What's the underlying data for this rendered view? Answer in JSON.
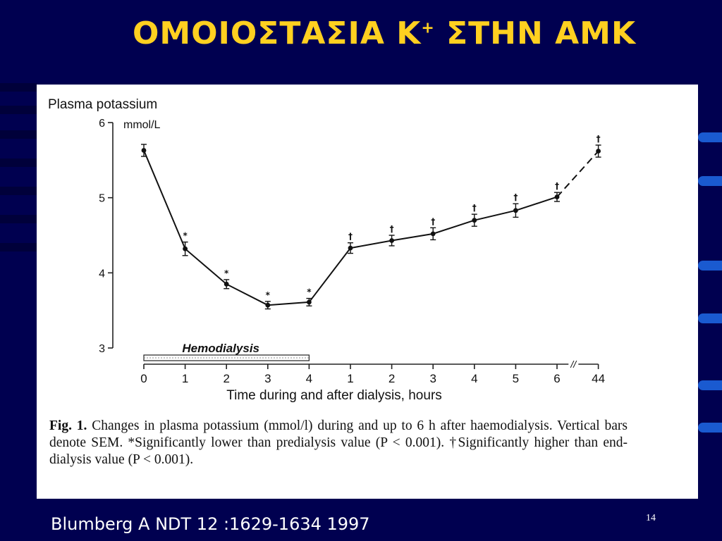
{
  "slide": {
    "title": "ΟΜΟΙΟΣΤΑΣΙΑ Κ",
    "title_superscript": "+",
    "title_suffix": " ΣΤΗΝ ΑΜΚ",
    "footer": "Blumberg A NDT 12 :1629-1634 1997",
    "page_number": "14",
    "title_color": "#ffd020",
    "background_color": "#000050"
  },
  "chart_data": {
    "type": "line",
    "title": "Plasma potassium",
    "ylabel_unit": "mmol/L",
    "xlabel": "Time during and after dialysis, hours",
    "ylim": [
      3,
      6
    ],
    "yticks": [
      3,
      4,
      5,
      6
    ],
    "band_label": "Hemodialysis",
    "axis_break": "//",
    "categories": [
      "0",
      "1",
      "2",
      "3",
      "4",
      "1",
      "2",
      "3",
      "4",
      "5",
      "6",
      "44"
    ],
    "series": [
      {
        "values": [
          5.63,
          4.32,
          3.85,
          3.57,
          3.61,
          4.33,
          4.43,
          4.52,
          4.7,
          4.83,
          5.01,
          5.62
        ],
        "sem": [
          0.08,
          0.09,
          0.06,
          0.05,
          0.05,
          0.07,
          0.07,
          0.08,
          0.08,
          0.09,
          0.06,
          0.08
        ],
        "markers": [
          "",
          "*",
          "*",
          "*",
          "*",
          "†",
          "†",
          "†",
          "†",
          "†",
          "†",
          "†"
        ],
        "dashed_last_segment": true
      }
    ]
  },
  "caption": {
    "label": "Fig. 1.",
    "text": " Changes in plasma potassium (mmol/l) during and up to 6 h after haemodialysis. Vertical bars denote SEM. *Significantly lower than predialysis value (P < 0.001). †Significantly higher than end-dialysis value (P < 0.001)."
  }
}
